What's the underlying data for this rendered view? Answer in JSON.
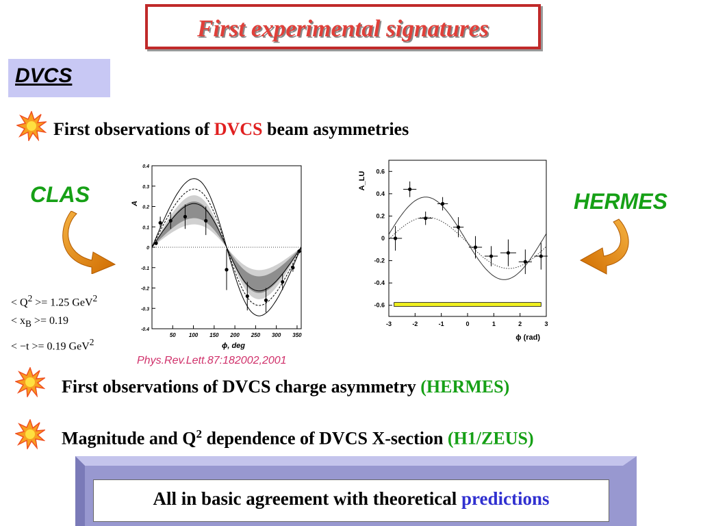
{
  "title": "First experimental signatures",
  "section": "DVCS",
  "bullets": [
    {
      "prefix": "First observations of ",
      "highlight": "DVCS",
      "suffix": " beam asymmetries",
      "highlight_color": "#e02020"
    },
    {
      "prefix": "First observations of DVCS charge asymmetry ",
      "highlight": "(HERMES)",
      "highlight_color": "#16a016"
    },
    {
      "prefix": "Magnitude and Q",
      "sup": "2",
      "prefix2": " dependence of DVCS X-section ",
      "highlight": "(H1/ZEUS)",
      "highlight_color": "#16a016"
    }
  ],
  "labels": {
    "left": "CLAS",
    "right": "HERMES"
  },
  "kinematics": [
    {
      "lhs": "< Q",
      "sup": "2",
      "rhs": " >= 1.25 GeV",
      "unit_sup": "2"
    },
    {
      "lhs": "< x",
      "sub": "B",
      "rhs": " >= 0.19"
    },
    {
      "lhs": "< −t",
      "rhs": " >= 0.19 GeV",
      "unit_sup": "2"
    }
  ],
  "reference": "Phys.Rev.Lett.87:182002,2001",
  "footer": {
    "prefix": "All in basic agreement with theoretical ",
    "highlight": "predictions",
    "highlight_color": "#3030d0"
  },
  "chart_data": [
    {
      "type": "scatter",
      "title": "",
      "xlabel": "ϕ, deg",
      "ylabel": "A",
      "xlim": [
        0,
        360
      ],
      "ylim": [
        -0.4,
        0.4
      ],
      "xticks": [
        50,
        100,
        150,
        200,
        250,
        300,
        350
      ],
      "yticks": [
        -0.4,
        -0.3,
        -0.2,
        -0.1,
        0,
        0.1,
        0.2,
        0.3,
        0.4
      ],
      "ytick_labels": [
        "-0.4",
        "-0.3",
        "-0.2",
        "-0.1",
        "0",
        "0.1",
        "0.2",
        "0.3",
        "0.4"
      ],
      "points": [
        {
          "x": 10,
          "y": 0.02,
          "err": 0.01
        },
        {
          "x": 20,
          "y": 0.12,
          "err": 0.03
        },
        {
          "x": 45,
          "y": 0.13,
          "err": 0.04
        },
        {
          "x": 80,
          "y": 0.15,
          "err": 0.06
        },
        {
          "x": 130,
          "y": 0.13,
          "err": 0.07
        },
        {
          "x": 180,
          "y": -0.11,
          "err": 0.1
        },
        {
          "x": 230,
          "y": -0.24,
          "err": 0.07
        },
        {
          "x": 275,
          "y": -0.26,
          "err": 0.06
        },
        {
          "x": 315,
          "y": -0.17,
          "err": 0.04
        },
        {
          "x": 340,
          "y": -0.1,
          "err": 0.02
        },
        {
          "x": 355,
          "y": -0.02,
          "err": 0.01
        }
      ]
    },
    {
      "type": "scatter",
      "title": "",
      "xlabel": "ϕ (rad)",
      "ylabel": "A_LU",
      "xlim": [
        -3,
        3
      ],
      "ylim": [
        -0.7,
        0.7
      ],
      "xticks": [
        -3,
        -2,
        -1,
        0,
        1,
        2,
        3
      ],
      "yticks": [
        -0.6,
        -0.4,
        -0.2,
        0,
        0.2,
        0.4,
        0.6
      ],
      "ytick_labels": [
        "-0.6",
        "-0.4",
        "-0.2",
        "0",
        "0.2",
        "0.4",
        "0.6"
      ],
      "points": [
        {
          "x": -2.75,
          "y": 0.0,
          "xerr": 0.25,
          "err": 0.11
        },
        {
          "x": -2.2,
          "y": 0.44,
          "xerr": 0.25,
          "err": 0.07
        },
        {
          "x": -1.6,
          "y": 0.18,
          "xerr": 0.25,
          "err": 0.06
        },
        {
          "x": -0.95,
          "y": 0.31,
          "xerr": 0.2,
          "err": 0.06
        },
        {
          "x": -0.35,
          "y": 0.1,
          "xerr": 0.2,
          "err": 0.09
        },
        {
          "x": 0.3,
          "y": -0.08,
          "xerr": 0.25,
          "err": 0.1
        },
        {
          "x": 0.9,
          "y": -0.16,
          "xerr": 0.25,
          "err": 0.09
        },
        {
          "x": 1.55,
          "y": -0.13,
          "xerr": 0.3,
          "err": 0.12
        },
        {
          "x": 2.2,
          "y": -0.21,
          "xerr": 0.25,
          "err": 0.11
        },
        {
          "x": 2.8,
          "y": -0.16,
          "xerr": 0.25,
          "err": 0.12
        }
      ]
    }
  ],
  "colors": {
    "title_text": "#e0403a",
    "title_border": "#c02a2a",
    "section_bg": "#c8c8f4",
    "footer_bg": "#9898d0",
    "arrow": "#e8900c",
    "star": "#f7a020"
  }
}
